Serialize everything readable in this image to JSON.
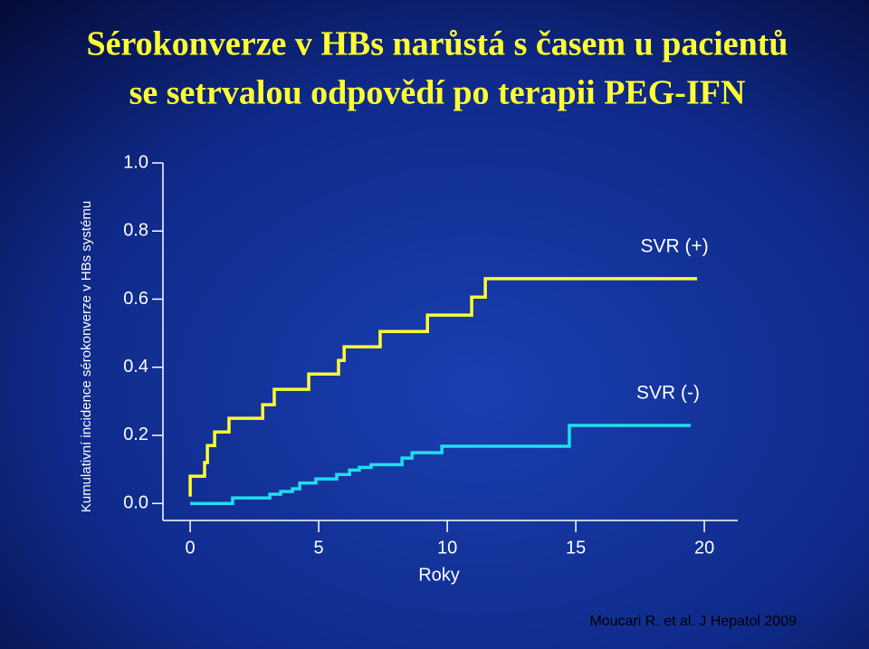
{
  "chart_data": {
    "type": "step",
    "title": [
      "Sérokonverze v HBs narůstá s časem u pacientů",
      "se setrvalou odpovědí po terapii PEG-IFN"
    ],
    "x_label": "Roky",
    "y_label": "Kumulativní incidence sérokonverze v HBs systému",
    "citation": "Moucari R. et al. J Hepatol 2009",
    "xlim": [
      -1.06,
      21.3
    ],
    "ylim": [
      -0.042,
      1.0
    ],
    "xticks": [
      0,
      5,
      10,
      15,
      20
    ],
    "yticks": [
      {
        "value": 0,
        "label": "0.0"
      },
      0.2,
      0.4,
      0.6,
      0.8,
      {
        "value": 1,
        "label": "1.0"
      }
    ],
    "series": [
      {
        "name": "SVR (+)",
        "color": "#ffff33",
        "x": [
          0,
          0,
          0.56,
          0.67,
          0.95,
          1.51,
          2.82,
          3.27,
          4.61,
          5.77,
          5.99,
          7.39,
          9.23,
          10.95,
          11.48,
          19.72
        ],
        "values": [
          0.02,
          0.08,
          0.12,
          0.17,
          0.21,
          0.25,
          0.29,
          0.335,
          0.38,
          0.42,
          0.46,
          0.505,
          0.553,
          0.606,
          0.66,
          0.66
        ]
      },
      {
        "name": "SVR (-)",
        "color": "#22ddee",
        "x": [
          0,
          1.65,
          3.1,
          3.52,
          3.98,
          4.26,
          4.89,
          5.7,
          6.2,
          6.58,
          7.04,
          8.24,
          8.63,
          9.79,
          14.75,
          19.47
        ],
        "values": [
          0.0,
          0.016,
          0.027,
          0.035,
          0.043,
          0.06,
          0.072,
          0.085,
          0.098,
          0.106,
          0.114,
          0.133,
          0.149,
          0.168,
          0.229,
          0.229
        ]
      }
    ]
  }
}
